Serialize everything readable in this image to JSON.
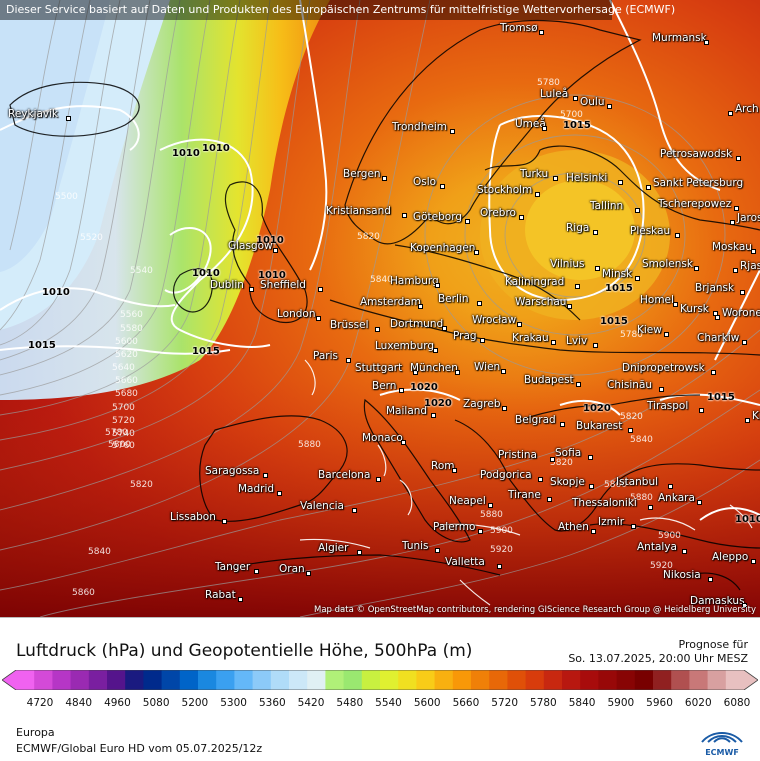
{
  "banner": "Dieser Service basiert auf Daten und Produkten des Europäischen Zentrums für mittelfristige Wettervorhersage (ECMWF)",
  "attribution": "Map data © OpenStreetMap contributors, rendering GIScience Research Group @ Heidelberg University",
  "footer": {
    "title": "Luftdruck (hPa) und Geopotentielle Höhe, 500hPa (m)",
    "forecast_label": "Prognose für",
    "forecast_time": "So. 13.07.2025, 20:00 Uhr MESZ",
    "region": "Europa",
    "model": "ECMWF/Global Euro HD vom  05.07.2025/12z",
    "logo_text": "ECMWF"
  },
  "colorbar": {
    "ticks": [
      "4720",
      "4840",
      "4960",
      "5080",
      "5200",
      "5300",
      "5360",
      "5420",
      "5480",
      "5540",
      "5600",
      "5660",
      "5720",
      "5780",
      "5840",
      "5900",
      "5960",
      "6020",
      "6080"
    ],
    "colors": [
      "#f062f0",
      "#d44ad8",
      "#b636c6",
      "#9a2ab2",
      "#7a1fa0",
      "#55148c",
      "#1a1a80",
      "#002a8c",
      "#0046a8",
      "#0064c8",
      "#1a88e0",
      "#3aa0f0",
      "#64b8f8",
      "#8ccaf8",
      "#b0dcf8",
      "#cce8f8",
      "#e0f0f4",
      "#b0f078",
      "#9ae870",
      "#c8f040",
      "#e0f030",
      "#f0e020",
      "#f8cc18",
      "#f8b010",
      "#f89808",
      "#f08008",
      "#e86808",
      "#e05008",
      "#d83c0c",
      "#c82810",
      "#b81810",
      "#a80c0c",
      "#980808",
      "#880404",
      "#780000",
      "#902020",
      "#b05050",
      "#c87878",
      "#d8a0a0",
      "#e8c0c0"
    ]
  },
  "isobars": [
    {
      "label": "1010",
      "pos": "a"
    },
    {
      "label": "1010",
      "pos": "b"
    },
    {
      "label": "1010",
      "pos": "c"
    },
    {
      "label": "1010",
      "pos": "d"
    },
    {
      "label": "1010",
      "pos": "e"
    },
    {
      "label": "1015",
      "pos": "f"
    },
    {
      "label": "1015",
      "pos": "g"
    },
    {
      "label": "1015",
      "pos": "h"
    },
    {
      "label": "1015",
      "pos": "i"
    },
    {
      "label": "1015",
      "pos": "j"
    },
    {
      "label": "1015",
      "pos": "k"
    },
    {
      "label": "1020",
      "pos": "l"
    },
    {
      "label": "1020",
      "pos": "m"
    },
    {
      "label": "1020",
      "pos": "n"
    },
    {
      "label": "1010",
      "pos": "o"
    },
    {
      "label": "1010",
      "pos": "p"
    }
  ],
  "heights": [
    {
      "label": "5500",
      "pos": "a"
    },
    {
      "label": "5520",
      "pos": "b"
    },
    {
      "label": "5540",
      "pos": "c"
    },
    {
      "label": "5560",
      "pos": "d"
    },
    {
      "label": "5580",
      "pos": "e"
    },
    {
      "label": "5600",
      "pos": "f"
    },
    {
      "label": "5620",
      "pos": "g"
    },
    {
      "label": "5640",
      "pos": "h"
    },
    {
      "label": "5660",
      "pos": "i"
    },
    {
      "label": "5680",
      "pos": "j"
    },
    {
      "label": "5700",
      "pos": "k"
    },
    {
      "label": "5720",
      "pos": "l"
    },
    {
      "label": "5740",
      "pos": "m"
    },
    {
      "label": "5760",
      "pos": "n"
    },
    {
      "label": "5780",
      "pos": "o"
    },
    {
      "label": "5800",
      "pos": "p"
    },
    {
      "label": "5820",
      "pos": "q"
    },
    {
      "label": "5840",
      "pos": "r"
    },
    {
      "label": "5860",
      "pos": "s"
    },
    {
      "label": "5880",
      "pos": "t"
    },
    {
      "label": "5900",
      "pos": "u"
    },
    {
      "label": "5920",
      "pos": "v"
    },
    {
      "label": "5780",
      "pos": "w"
    },
    {
      "label": "5820",
      "pos": "x"
    },
    {
      "label": "5840",
      "pos": "y"
    },
    {
      "label": "5880",
      "pos": "z"
    },
    {
      "label": "5820",
      "pos": "aa"
    },
    {
      "label": "5880",
      "pos": "ab"
    },
    {
      "label": "5900",
      "pos": "ac"
    },
    {
      "label": "5920",
      "pos": "ad"
    },
    {
      "label": "5820",
      "pos": "ae"
    },
    {
      "label": "5840",
      "pos": "af"
    },
    {
      "label": "5860",
      "pos": "ag"
    },
    {
      "label": "5780",
      "pos": "ah"
    },
    {
      "label": "5700",
      "pos": "ai"
    }
  ],
  "cities": [
    {
      "name": "Tromsø",
      "pos": "c1"
    },
    {
      "name": "Murmansk",
      "pos": "c2"
    },
    {
      "name": "Reykjavik",
      "pos": "c3"
    },
    {
      "name": "Luleå",
      "pos": "c4"
    },
    {
      "name": "Oulu",
      "pos": "c5"
    },
    {
      "name": "Arch",
      "pos": "c6"
    },
    {
      "name": "Trondheim",
      "pos": "c7"
    },
    {
      "name": "Umeå",
      "pos": "c8"
    },
    {
      "name": "Petrosawodsk",
      "pos": "c9"
    },
    {
      "name": "Bergen",
      "pos": "c10"
    },
    {
      "name": "Oslo",
      "pos": "c11"
    },
    {
      "name": "Turku",
      "pos": "c12"
    },
    {
      "name": "Helsinki",
      "pos": "c13"
    },
    {
      "name": "Sankt Petersburg",
      "pos": "c14"
    },
    {
      "name": "Stockholm",
      "pos": "c15"
    },
    {
      "name": "Kristiansand",
      "pos": "c16"
    },
    {
      "name": "Orebro",
      "pos": "c17"
    },
    {
      "name": "Tallinn",
      "pos": "c18"
    },
    {
      "name": "Tscherepowez",
      "pos": "c19"
    },
    {
      "name": "Göteborg",
      "pos": "c20"
    },
    {
      "name": "Jaros",
      "pos": "c21"
    },
    {
      "name": "Riga",
      "pos": "c22"
    },
    {
      "name": "Pleskau",
      "pos": "c23"
    },
    {
      "name": "Glasgow",
      "pos": "c24"
    },
    {
      "name": "Kopenhagen",
      "pos": "c25"
    },
    {
      "name": "Moskau",
      "pos": "c26"
    },
    {
      "name": "Vilnius",
      "pos": "c27"
    },
    {
      "name": "Smolensk",
      "pos": "c28"
    },
    {
      "name": "Hamburg",
      "pos": "c29"
    },
    {
      "name": "Minsk",
      "pos": "c30"
    },
    {
      "name": "Sheffield",
      "pos": "c31"
    },
    {
      "name": "Dublin",
      "pos": "c32"
    },
    {
      "name": "Kaliningrad",
      "pos": "c33"
    },
    {
      "name": "Rjas",
      "pos": "c34"
    },
    {
      "name": "Brjansk",
      "pos": "c35"
    },
    {
      "name": "Amsterdam",
      "pos": "c36"
    },
    {
      "name": "Berlin",
      "pos": "c37"
    },
    {
      "name": "Warschau",
      "pos": "c38"
    },
    {
      "name": "Homel",
      "pos": "c39"
    },
    {
      "name": "Kursk",
      "pos": "c40"
    },
    {
      "name": "London",
      "pos": "c41"
    },
    {
      "name": "Worone",
      "pos": "c42"
    },
    {
      "name": "Brüssel",
      "pos": "c43"
    },
    {
      "name": "Dortmund",
      "pos": "c44"
    },
    {
      "name": "Wrocław",
      "pos": "c45"
    },
    {
      "name": "Kiew",
      "pos": "c46"
    },
    {
      "name": "Krakau",
      "pos": "c47"
    },
    {
      "name": "Prag",
      "pos": "c48"
    },
    {
      "name": "Charkiw",
      "pos": "c49"
    },
    {
      "name": "Luxemburg",
      "pos": "c50"
    },
    {
      "name": "Lviv",
      "pos": "c51"
    },
    {
      "name": "Paris",
      "pos": "c52"
    },
    {
      "name": "Stuttgart",
      "pos": "c53"
    },
    {
      "name": "München",
      "pos": "c54"
    },
    {
      "name": "Wien",
      "pos": "c55"
    },
    {
      "name": "Dnipropetrowsk",
      "pos": "c56"
    },
    {
      "name": "Budapest",
      "pos": "c57"
    },
    {
      "name": "Chisinău",
      "pos": "c58"
    },
    {
      "name": "Bern",
      "pos": "c59"
    },
    {
      "name": "Tiraspol",
      "pos": "c60"
    },
    {
      "name": "Zagreb",
      "pos": "c61"
    },
    {
      "name": "Mailand",
      "pos": "c62"
    },
    {
      "name": "Krasno",
      "pos": "c63"
    },
    {
      "name": "Belgrad",
      "pos": "c64"
    },
    {
      "name": "Bukarest",
      "pos": "c65"
    },
    {
      "name": "Monaco",
      "pos": "c66"
    },
    {
      "name": "Pristina",
      "pos": "c67"
    },
    {
      "name": "Sofia",
      "pos": "c68"
    },
    {
      "name": "Rom",
      "pos": "c69"
    },
    {
      "name": "Podgorica",
      "pos": "c70"
    },
    {
      "name": "Saragossa",
      "pos": "c71"
    },
    {
      "name": "Barcelona",
      "pos": "c72"
    },
    {
      "name": "Skopje",
      "pos": "c73"
    },
    {
      "name": "Istanbul",
      "pos": "c74"
    },
    {
      "name": "Madrid",
      "pos": "c75"
    },
    {
      "name": "Tirane",
      "pos": "c76"
    },
    {
      "name": "Neapel",
      "pos": "c77"
    },
    {
      "name": "Ankara",
      "pos": "c78"
    },
    {
      "name": "Thessaloniki",
      "pos": "c79"
    },
    {
      "name": "Valencia",
      "pos": "c80"
    },
    {
      "name": "Lissabon",
      "pos": "c81"
    },
    {
      "name": "Palermo",
      "pos": "c82"
    },
    {
      "name": "Athen",
      "pos": "c83"
    },
    {
      "name": "Izmir",
      "pos": "c84"
    },
    {
      "name": "Algier",
      "pos": "c85"
    },
    {
      "name": "Tunis",
      "pos": "c86"
    },
    {
      "name": "Antalya",
      "pos": "c87"
    },
    {
      "name": "Valletta",
      "pos": "c88"
    },
    {
      "name": "Aleppo",
      "pos": "c89"
    },
    {
      "name": "Tanger",
      "pos": "c90"
    },
    {
      "name": "Oran",
      "pos": "c91"
    },
    {
      "name": "Nikosia",
      "pos": "c92"
    },
    {
      "name": "Rabat",
      "pos": "c93"
    },
    {
      "name": "Damaskus",
      "pos": "c94"
    }
  ]
}
